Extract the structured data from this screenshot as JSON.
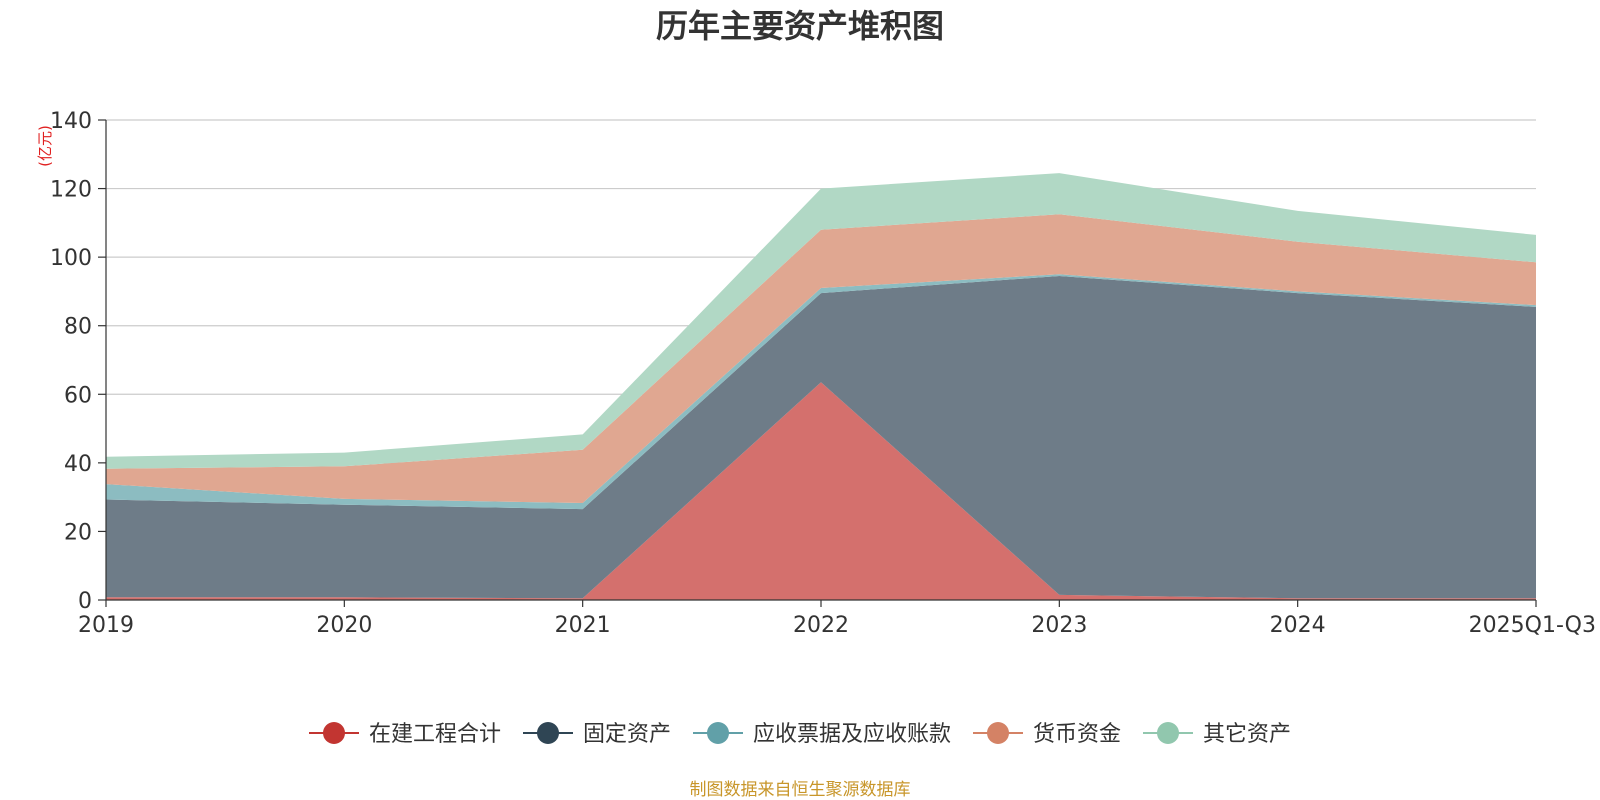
{
  "chart_data": {
    "type": "area",
    "stacked": true,
    "title": "历年主要资产堆积图",
    "unit_label": "(亿元)",
    "xlabel": "",
    "ylabel": "(亿元)",
    "ylim": [
      0,
      140
    ],
    "yticks": [
      0,
      20,
      40,
      60,
      80,
      100,
      120,
      140
    ],
    "grid": true,
    "legend_position": "bottom",
    "categories": [
      "2019",
      "2020",
      "2021",
      "2022",
      "2023",
      "2024",
      "2025Q1-Q3"
    ],
    "series": [
      {
        "name": "在建工程合计",
        "color": "#c23531",
        "fill": "#d4706d",
        "values": [
          0.8,
          0.8,
          0.5,
          63.5,
          1.5,
          0.5,
          0.5
        ]
      },
      {
        "name": "固定资产",
        "color": "#2f4554",
        "fill": "#6e7c88",
        "values": [
          28.5,
          27.0,
          26.0,
          26.0,
          93.0,
          89.0,
          85.0
        ]
      },
      {
        "name": "应收票据及应收账款",
        "color": "#61a0a8",
        "fill": "#8cbcc1",
        "values": [
          4.5,
          1.7,
          1.8,
          1.5,
          0.5,
          0.5,
          0.5
        ]
      },
      {
        "name": "货币资金",
        "color": "#d48265",
        "fill": "#e0a791",
        "values": [
          4.5,
          9.5,
          15.5,
          17.0,
          17.5,
          14.5,
          12.5
        ]
      },
      {
        "name": "其它资产",
        "color": "#91c7ae",
        "fill": "#b1d8c5",
        "values": [
          3.5,
          4.0,
          4.5,
          12.0,
          12.0,
          9.0,
          8.0
        ]
      }
    ]
  },
  "footer": {
    "source": "制图数据来自恒生聚源数据库"
  }
}
